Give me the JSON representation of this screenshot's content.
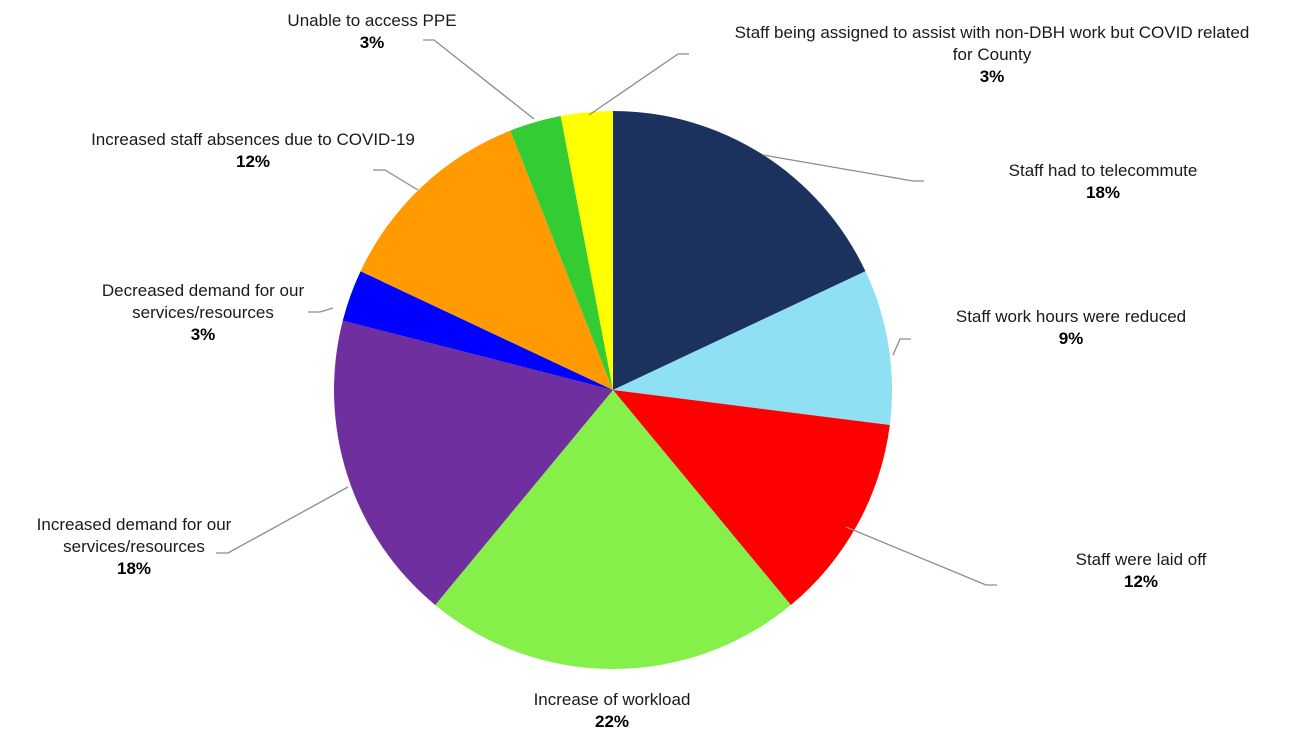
{
  "chart_data": {
    "type": "pie",
    "slices": [
      {
        "label": "Staff had to telecommute",
        "percent_label": "18%",
        "value": 18,
        "color": "#1c325e"
      },
      {
        "label": "Staff work hours were reduced",
        "percent_label": "9%",
        "value": 9,
        "color": "#8ee0f2"
      },
      {
        "label": "Staff were laid off",
        "percent_label": "12%",
        "value": 12,
        "color": "#ff0000"
      },
      {
        "label": "Increase of workload",
        "percent_label": "22%",
        "value": 22,
        "color": "#85f04a"
      },
      {
        "label": "Increased demand for our services/resources",
        "percent_label": "18%",
        "value": 18,
        "color": "#6f2f9f"
      },
      {
        "label": "Decreased demand for our services/resources",
        "percent_label": "3%",
        "value": 3,
        "color": "#0000ff"
      },
      {
        "label": "Increased staff absences due to COVID-19",
        "percent_label": "12%",
        "value": 12,
        "color": "#ff9a00"
      },
      {
        "label": "Unable to access PPE",
        "percent_label": "3%",
        "value": 3,
        "color": "#33cc33"
      },
      {
        "label": "Staff being assigned to assist with non-DBH work but COVID related for County",
        "percent_label": "3%",
        "value": 3,
        "color": "#ffff00"
      }
    ]
  }
}
